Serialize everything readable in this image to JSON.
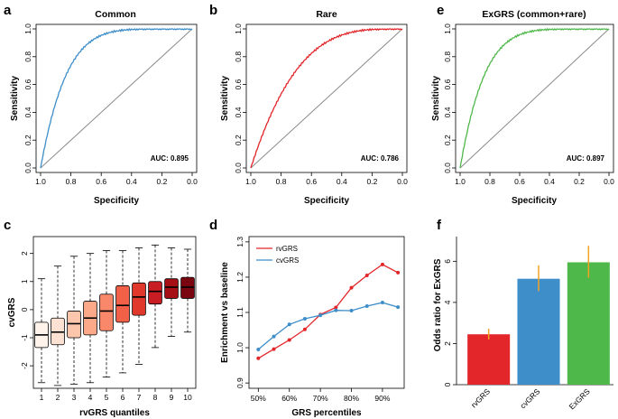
{
  "panels": {
    "a": {
      "letter": "a",
      "title": "Common",
      "xlabel": "Specificity",
      "ylabel": "Sensitivity",
      "auc_label": "AUC: 0.895",
      "color": "#3d8ec9",
      "curve_power": 6
    },
    "b": {
      "letter": "b",
      "title": "Rare",
      "xlabel": "Specificity",
      "ylabel": "Sensitivity",
      "auc_label": "AUC: 0.786",
      "color": "#e3262a",
      "curve_power": 3.4
    },
    "e": {
      "letter": "e",
      "title": "ExGRS (common+rare)",
      "xlabel": "Specificity",
      "ylabel": "Sensitivity",
      "auc_label": "AUC: 0.897",
      "color": "#4fb84a",
      "curve_power": 6.2
    },
    "c": {
      "letter": "c",
      "xlabel": "rvGRS quantiles",
      "ylabel": "cvGRS"
    },
    "d": {
      "letter": "d",
      "xlabel": "GRS percentiles",
      "ylabel": "Enrichment vs baseline"
    },
    "f": {
      "letter": "f",
      "ylabel": "Odds ratio for ExGRS"
    }
  },
  "chart_data": [
    {
      "id": "a",
      "type": "line",
      "title": "Common",
      "xlabel": "Specificity",
      "ylabel": "Sensitivity",
      "xlim": [
        1.0,
        0.0
      ],
      "ylim": [
        0.0,
        1.0
      ],
      "xticks": [
        "1.0",
        "0.8",
        "0.6",
        "0.4",
        "0.2",
        "0.0"
      ],
      "yticks": [
        "0.0",
        "0.2",
        "0.4",
        "0.6",
        "0.8",
        "1.0"
      ],
      "series": [
        {
          "name": "ROC",
          "color": "#3d8ec9",
          "auc": 0.895
        }
      ],
      "annotation": "AUC: 0.895"
    },
    {
      "id": "b",
      "type": "line",
      "title": "Rare",
      "xlabel": "Specificity",
      "ylabel": "Sensitivity",
      "xlim": [
        1.0,
        0.0
      ],
      "ylim": [
        0.0,
        1.0
      ],
      "xticks": [
        "1.0",
        "0.8",
        "0.6",
        "0.4",
        "0.2",
        "0.0"
      ],
      "yticks": [
        "0.0",
        "0.2",
        "0.4",
        "0.6",
        "0.8",
        "1.0"
      ],
      "series": [
        {
          "name": "ROC",
          "color": "#e3262a",
          "auc": 0.786
        }
      ],
      "annotation": "AUC: 0.786"
    },
    {
      "id": "e",
      "type": "line",
      "title": "ExGRS (common+rare)",
      "xlabel": "Specificity",
      "ylabel": "Sensitivity",
      "xlim": [
        1.0,
        0.0
      ],
      "ylim": [
        0.0,
        1.0
      ],
      "xticks": [
        "1.0",
        "0.8",
        "0.6",
        "0.4",
        "0.2",
        "0.0"
      ],
      "yticks": [
        "0.0",
        "0.2",
        "0.4",
        "0.6",
        "0.8",
        "1.0"
      ],
      "series": [
        {
          "name": "ROC",
          "color": "#4fb84a",
          "auc": 0.897
        }
      ],
      "annotation": "AUC: 0.897"
    },
    {
      "id": "c",
      "type": "box",
      "xlabel": "rvGRS quantiles",
      "ylabel": "cvGRS",
      "ylim": [
        -2.8,
        2.6
      ],
      "xticks": [
        "1",
        "2",
        "3",
        "4",
        "5",
        "6",
        "7",
        "8",
        "9",
        "10"
      ],
      "yticks": [
        "-2",
        "-1",
        "0",
        "1",
        "2"
      ],
      "boxes": [
        {
          "q": "1",
          "whisker_low": -2.6,
          "q1": -1.35,
          "median": -0.9,
          "q3": -0.45,
          "whisker_high": 1.1,
          "color": "#fff3ec"
        },
        {
          "q": "2",
          "whisker_low": -2.7,
          "q1": -1.25,
          "median": -0.8,
          "q3": -0.3,
          "whisker_high": 1.55,
          "color": "#fde2d4"
        },
        {
          "q": "3",
          "whisker_low": -2.65,
          "q1": -1.0,
          "median": -0.5,
          "q3": -0.05,
          "whisker_high": 1.9,
          "color": "#fcc6ad"
        },
        {
          "q": "4",
          "whisker_low": -2.6,
          "q1": -0.9,
          "median": -0.3,
          "q3": 0.3,
          "whisker_high": 2.0,
          "color": "#fca98a"
        },
        {
          "q": "5",
          "whisker_low": -2.4,
          "q1": -0.75,
          "median": -0.05,
          "q3": 0.55,
          "whisker_high": 2.1,
          "color": "#f9876a"
        },
        {
          "q": "6",
          "whisker_low": -2.25,
          "q1": -0.45,
          "median": 0.15,
          "q3": 0.85,
          "whisker_high": 2.1,
          "color": "#f26048"
        },
        {
          "q": "7",
          "whisker_low": -1.95,
          "q1": -0.2,
          "median": 0.45,
          "q3": 0.95,
          "whisker_high": 2.2,
          "color": "#e0392c"
        },
        {
          "q": "8",
          "whisker_low": -1.35,
          "q1": 0.2,
          "median": 0.65,
          "q3": 1.0,
          "whisker_high": 2.3,
          "color": "#c81d23"
        },
        {
          "q": "9",
          "whisker_low": -0.95,
          "q1": 0.4,
          "median": 0.8,
          "q3": 1.1,
          "whisker_high": 2.2,
          "color": "#a50f15"
        },
        {
          "q": "10",
          "whisker_low": -0.8,
          "q1": 0.4,
          "median": 0.8,
          "q3": 1.15,
          "whisker_high": 2.15,
          "color": "#7a0510"
        }
      ]
    },
    {
      "id": "d",
      "type": "line",
      "xlabel": "GRS percentiles",
      "ylabel": "Enrichment vs baseline",
      "ylim": [
        0.9,
        1.3
      ],
      "x": [
        50,
        55,
        60,
        65,
        70,
        75,
        80,
        85,
        90,
        95
      ],
      "xticks": [
        "50%",
        "60%",
        "70%",
        "80%",
        "90%"
      ],
      "yticks": [
        "0.9",
        "1.0",
        "1.1",
        "1.2",
        "1.3"
      ],
      "legend_position": "top-left",
      "series": [
        {
          "name": "rvGRS",
          "color": "#e3262a",
          "values": [
            0.97,
            0.996,
            1.022,
            1.052,
            1.094,
            1.114,
            1.17,
            1.205,
            1.236,
            1.213
          ]
        },
        {
          "name": "cvGRS",
          "color": "#3d8ec9",
          "values": [
            0.995,
            1.032,
            1.066,
            1.082,
            1.092,
            1.106,
            1.105,
            1.118,
            1.128,
            1.115
          ]
        }
      ]
    },
    {
      "id": "f",
      "type": "bar",
      "ylabel": "Odds ratio for ExGRS",
      "ylim": [
        0,
        7
      ],
      "yticks": [
        "0",
        "2",
        "4",
        "6"
      ],
      "categories": [
        "rvGRS",
        "cvGRS",
        "ExGRS"
      ],
      "values": [
        2.45,
        5.15,
        5.95
      ],
      "ci_low": [
        2.2,
        4.55,
        5.2
      ],
      "ci_high": [
        2.72,
        5.8,
        6.75
      ],
      "colors": [
        "#e3262a",
        "#3d8ec9",
        "#4fb84a"
      ],
      "errorbar_color": "#f2a322"
    }
  ]
}
